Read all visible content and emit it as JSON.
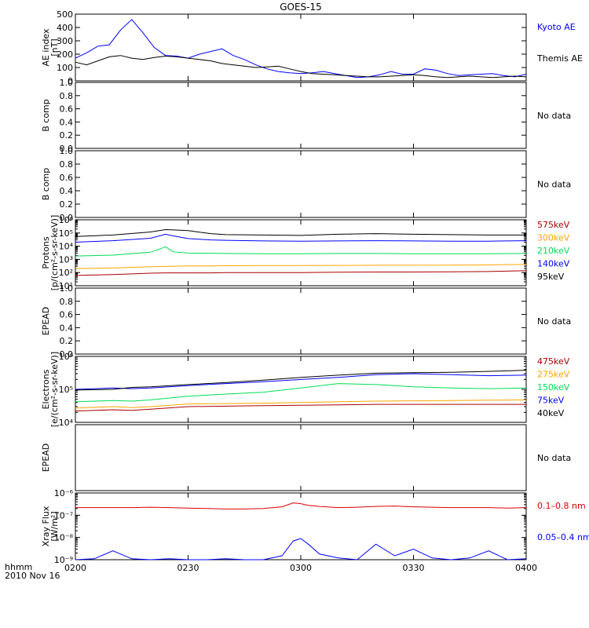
{
  "title": "GOES-15",
  "footer": {
    "time_label": "hhmm",
    "date_label": "2010 Nov 16"
  },
  "x_axis": {
    "ticks": [
      "0200",
      "0230",
      "0300",
      "0330",
      "0400"
    ],
    "range_minutes": [
      0,
      120
    ]
  },
  "colors": {
    "black": "#000000",
    "blue": "#0000ff",
    "green": "#00dd55",
    "orange": "#ffa500",
    "red": "#dd0000",
    "darkred": "#aa0000"
  },
  "chart_data": [
    {
      "type": "line",
      "ylabel": "AE index",
      "yunit": "[nT]",
      "ylim": [
        0,
        500
      ],
      "yscale": "linear",
      "yticks": [
        "0",
        "100",
        "200",
        "300",
        "400",
        "500"
      ],
      "x": [
        0,
        3,
        6,
        9,
        12,
        15,
        18,
        21,
        24,
        27,
        30,
        33,
        36,
        39,
        42,
        45,
        48,
        51,
        54,
        57,
        60,
        63,
        66,
        69,
        72,
        75,
        78,
        81,
        84,
        87,
        90,
        93,
        96,
        99,
        102,
        105,
        108,
        111,
        114,
        117,
        120
      ],
      "series": [
        {
          "name": "Kyoto AE",
          "color": "#0000ff",
          "values": [
            170,
            210,
            260,
            270,
            380,
            460,
            360,
            250,
            190,
            185,
            170,
            200,
            220,
            240,
            190,
            160,
            120,
            90,
            70,
            60,
            55,
            60,
            70,
            55,
            40,
            25,
            30,
            45,
            70,
            50,
            50,
            90,
            80,
            55,
            40,
            45,
            50,
            55,
            40,
            30,
            50
          ]
        },
        {
          "name": "Themis AE",
          "color": "#000000",
          "values": [
            140,
            120,
            150,
            180,
            190,
            170,
            160,
            175,
            185,
            180,
            170,
            160,
            150,
            130,
            120,
            110,
            100,
            105,
            110,
            90,
            70,
            55,
            50,
            45,
            40,
            35,
            30,
            30,
            35,
            40,
            45,
            40,
            30,
            25,
            30,
            35,
            30,
            25,
            30,
            35,
            30
          ]
        }
      ]
    },
    {
      "type": "line",
      "ylabel": "B comp",
      "ylim": [
        0,
        1
      ],
      "yscale": "linear",
      "yticks": [
        "0.0",
        "0.2",
        "0.4",
        "0.6",
        "0.8",
        "1.0"
      ],
      "note": "No data",
      "series": []
    },
    {
      "type": "line",
      "ylabel": "B comp",
      "ylim": [
        0,
        1
      ],
      "yscale": "linear",
      "yticks": [
        "0.0",
        "0.2",
        "0.4",
        "0.6",
        "0.8",
        "1.0"
      ],
      "note": "No data",
      "series": []
    },
    {
      "type": "line",
      "ylabel": "Protons",
      "yunit": "[p/(cm²-s-sr-keV)]",
      "ylim": [
        10,
        1000000
      ],
      "yscale": "log",
      "yticks": [
        "10¹",
        "10²",
        "10³",
        "10⁴",
        "10⁵",
        "10⁶"
      ],
      "x": [
        0,
        10,
        20,
        24,
        26,
        30,
        36,
        40,
        50,
        60,
        70,
        80,
        90,
        100,
        110,
        120
      ],
      "series": [
        {
          "name": "575keV",
          "color": "#aa0000",
          "values": [
            60,
            70,
            90,
            95,
            95,
            95,
            95,
            100,
            100,
            100,
            105,
            110,
            110,
            115,
            120,
            140
          ]
        },
        {
          "name": "300keV",
          "color": "#ffa500",
          "values": [
            200,
            220,
            280,
            300,
            300,
            320,
            320,
            330,
            340,
            340,
            350,
            360,
            360,
            370,
            380,
            420
          ]
        },
        {
          "name": "210keV",
          "color": "#00dd55",
          "values": [
            1800,
            2100,
            3500,
            9000,
            3800,
            3000,
            2900,
            2800,
            2700,
            2700,
            2800,
            2800,
            2700,
            2700,
            2700,
            2800
          ]
        },
        {
          "name": "140keV",
          "color": "#0000ff",
          "values": [
            20000,
            26000,
            40000,
            80000,
            60000,
            38000,
            30000,
            28000,
            25000,
            24000,
            25000,
            26000,
            25000,
            24000,
            24000,
            26000
          ]
        },
        {
          "name": "95keV",
          "color": "#000000",
          "values": [
            55000,
            70000,
            120000,
            180000,
            170000,
            150000,
            90000,
            75000,
            70000,
            65000,
            80000,
            90000,
            80000,
            75000,
            70000,
            70000
          ]
        }
      ]
    },
    {
      "type": "line",
      "ylabel": "EPEAD",
      "ylim": [
        0,
        1
      ],
      "yscale": "linear",
      "yticks": [
        "0.0",
        "0.2",
        "0.4",
        "0.6",
        "0.8",
        "1.0"
      ],
      "note": "No data",
      "series": []
    },
    {
      "type": "line",
      "ylabel": "Electrons",
      "yunit": "[e/(cm²-s-sr-keV)]",
      "ylim": [
        10000,
        1000000
      ],
      "yscale": "log",
      "yticks": [
        "10⁴",
        "10⁵",
        "10⁶"
      ],
      "x": [
        0,
        10,
        15,
        20,
        30,
        40,
        50,
        60,
        70,
        80,
        90,
        100,
        110,
        120
      ],
      "series": [
        {
          "name": "475keV",
          "color": "#aa0000",
          "values": [
            22000,
            24000,
            23000,
            25000,
            30000,
            31000,
            32000,
            33000,
            34000,
            35000,
            35000,
            35000,
            35000,
            35000
          ]
        },
        {
          "name": "275keV",
          "color": "#ffa500",
          "values": [
            27000,
            30000,
            28000,
            30000,
            36000,
            37000,
            38000,
            40000,
            42000,
            44000,
            45000,
            46000,
            47000,
            48000
          ]
        },
        {
          "name": "150keV",
          "color": "#00dd55",
          "values": [
            42000,
            46000,
            44000,
            48000,
            62000,
            72000,
            82000,
            110000,
            150000,
            140000,
            120000,
            110000,
            105000,
            110000
          ]
        },
        {
          "name": "75keV",
          "color": "#0000ff",
          "values": [
            100000,
            110000,
            105000,
            110000,
            130000,
            150000,
            170000,
            200000,
            230000,
            280000,
            300000,
            280000,
            260000,
            270000
          ]
        },
        {
          "name": "40keV",
          "color": "#000000",
          "values": [
            95000,
            100000,
            115000,
            120000,
            140000,
            160000,
            190000,
            230000,
            270000,
            310000,
            320000,
            330000,
            350000,
            380000
          ]
        }
      ]
    },
    {
      "type": "line",
      "ylabel": "EPEAD",
      "note": "No data",
      "series": []
    },
    {
      "type": "line",
      "ylabel": "Xray Flux",
      "yunit": "[W/m²]",
      "ylim": [
        1e-09,
        1e-06
      ],
      "yscale": "log",
      "yticks": [
        "10⁻⁹",
        "10⁻⁸",
        "10⁻⁷",
        "10⁻⁶"
      ],
      "x": [
        0,
        5,
        10,
        15,
        20,
        25,
        30,
        35,
        40,
        45,
        50,
        55,
        58,
        60,
        62,
        65,
        70,
        75,
        80,
        85,
        90,
        95,
        100,
        105,
        110,
        115,
        120
      ],
      "series": [
        {
          "name": "0.1–0.8 nm",
          "color": "#dd0000",
          "values": [
            2.2e-07,
            2.2e-07,
            2.2e-07,
            2.2e-07,
            2.3e-07,
            2.2e-07,
            2.1e-07,
            2e-07,
            1.9e-07,
            1.9e-07,
            2e-07,
            2.4e-07,
            3.6e-07,
            3.3e-07,
            2.8e-07,
            2.5e-07,
            2.2e-07,
            2.3e-07,
            2.5e-07,
            2.6e-07,
            2.4e-07,
            2.3e-07,
            2.2e-07,
            2.2e-07,
            2.2e-07,
            2.1e-07,
            2.2e-07
          ]
        },
        {
          "name": "0.05–0.4 nm",
          "color": "#0000ff",
          "values": [
            1e-09,
            1.1e-09,
            2.5e-09,
            1.1e-09,
            1e-09,
            1.1e-09,
            1e-09,
            1e-09,
            1.1e-09,
            1e-09,
            1e-09,
            1.5e-09,
            7e-09,
            9e-09,
            5e-09,
            1.8e-09,
            1.2e-09,
            1e-09,
            5e-09,
            1.5e-09,
            3e-09,
            1.2e-09,
            1e-09,
            1.2e-09,
            2.5e-09,
            1e-09,
            1.1e-09
          ]
        }
      ]
    }
  ]
}
